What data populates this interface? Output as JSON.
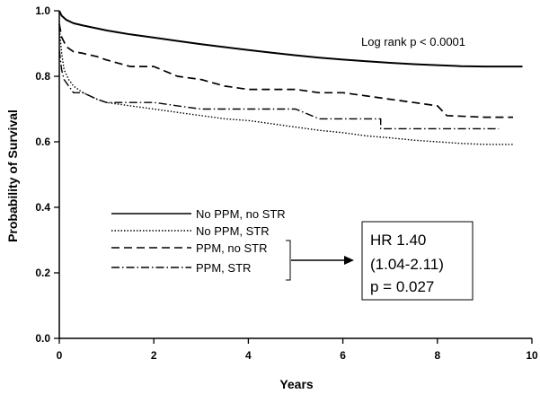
{
  "chart_data": {
    "type": "line",
    "title": "",
    "xlabel": "Years",
    "ylabel": "Probability of Survival",
    "xlim": [
      0,
      10
    ],
    "ylim": [
      0.0,
      1.0
    ],
    "xticks": [
      0,
      2,
      4,
      6,
      8,
      10
    ],
    "yticks": [
      0.0,
      0.2,
      0.4,
      0.6,
      0.8,
      1.0
    ],
    "xtick_labels": [
      "0",
      "2",
      "4",
      "6",
      "8",
      "10"
    ],
    "ytick_labels": [
      "0.0",
      "0.2",
      "0.4",
      "0.6",
      "0.8",
      "1.0"
    ],
    "grid": false,
    "legend_position": "middle-left",
    "annotation": "Log rank p < 0.0001",
    "hr_box": {
      "lines": [
        "HR 1.40",
        "(1.04-2.11)",
        "p = 0.027"
      ],
      "applies_to": [
        "PPM, no STR",
        "PPM, STR"
      ]
    },
    "series": [
      {
        "name": "No PPM, no STR",
        "style": "solid",
        "points": [
          [
            0,
            1.0
          ],
          [
            0.05,
            0.985
          ],
          [
            0.15,
            0.972
          ],
          [
            0.3,
            0.962
          ],
          [
            0.5,
            0.955
          ],
          [
            1,
            0.94
          ],
          [
            1.5,
            0.928
          ],
          [
            2,
            0.918
          ],
          [
            2.5,
            0.908
          ],
          [
            3,
            0.898
          ],
          [
            3.5,
            0.889
          ],
          [
            4,
            0.88
          ],
          [
            4.5,
            0.872
          ],
          [
            5,
            0.864
          ],
          [
            5.5,
            0.857
          ],
          [
            6,
            0.851
          ],
          [
            6.5,
            0.846
          ],
          [
            7,
            0.841
          ],
          [
            7.5,
            0.837
          ],
          [
            8,
            0.834
          ],
          [
            8.5,
            0.831
          ],
          [
            9,
            0.83
          ],
          [
            9.8,
            0.83
          ]
        ]
      },
      {
        "name": "No PPM, STR",
        "style": "dotted",
        "points": [
          [
            0,
            0.95
          ],
          [
            0.05,
            0.87
          ],
          [
            0.1,
            0.82
          ],
          [
            0.2,
            0.79
          ],
          [
            0.3,
            0.77
          ],
          [
            0.5,
            0.75
          ],
          [
            0.8,
            0.73
          ],
          [
            1,
            0.72
          ],
          [
            1.5,
            0.71
          ],
          [
            2,
            0.7
          ],
          [
            2.5,
            0.69
          ],
          [
            3,
            0.68
          ],
          [
            3.5,
            0.67
          ],
          [
            4,
            0.665
          ],
          [
            4.5,
            0.655
          ],
          [
            5,
            0.645
          ],
          [
            5.5,
            0.635
          ],
          [
            6,
            0.628
          ],
          [
            6.5,
            0.618
          ],
          [
            7,
            0.612
          ],
          [
            7.5,
            0.605
          ],
          [
            8,
            0.6
          ],
          [
            8.5,
            0.595
          ],
          [
            9,
            0.592
          ],
          [
            9.6,
            0.592
          ]
        ]
      },
      {
        "name": "PPM, no STR",
        "style": "dashed",
        "points": [
          [
            0,
            0.96
          ],
          [
            0.05,
            0.92
          ],
          [
            0.15,
            0.89
          ],
          [
            0.3,
            0.875
          ],
          [
            0.5,
            0.87
          ],
          [
            0.8,
            0.86
          ],
          [
            1,
            0.85
          ],
          [
            1.5,
            0.83
          ],
          [
            2,
            0.83
          ],
          [
            2.5,
            0.8
          ],
          [
            3,
            0.79
          ],
          [
            3.5,
            0.77
          ],
          [
            4,
            0.76
          ],
          [
            4.5,
            0.76
          ],
          [
            5,
            0.76
          ],
          [
            5.5,
            0.75
          ],
          [
            6,
            0.75
          ],
          [
            6.5,
            0.74
          ],
          [
            7,
            0.73
          ],
          [
            7.5,
            0.72
          ],
          [
            8,
            0.71
          ],
          [
            8.2,
            0.68
          ],
          [
            9,
            0.675
          ],
          [
            9.6,
            0.675
          ]
        ]
      },
      {
        "name": "PPM, STR",
        "style": "dashdot",
        "points": [
          [
            0,
            0.88
          ],
          [
            0.05,
            0.82
          ],
          [
            0.1,
            0.79
          ],
          [
            0.2,
            0.77
          ],
          [
            0.3,
            0.75
          ],
          [
            0.5,
            0.75
          ],
          [
            0.8,
            0.73
          ],
          [
            1,
            0.72
          ],
          [
            1.5,
            0.72
          ],
          [
            2,
            0.72
          ],
          [
            2.5,
            0.71
          ],
          [
            3,
            0.7
          ],
          [
            3.5,
            0.7
          ],
          [
            4,
            0.7
          ],
          [
            5,
            0.7
          ],
          [
            5.5,
            0.67
          ],
          [
            6,
            0.67
          ],
          [
            6.5,
            0.67
          ],
          [
            6.8,
            0.67
          ],
          [
            6.8,
            0.64
          ],
          [
            7.5,
            0.64
          ],
          [
            8,
            0.64
          ],
          [
            9,
            0.64
          ],
          [
            9.3,
            0.64
          ]
        ]
      }
    ]
  }
}
